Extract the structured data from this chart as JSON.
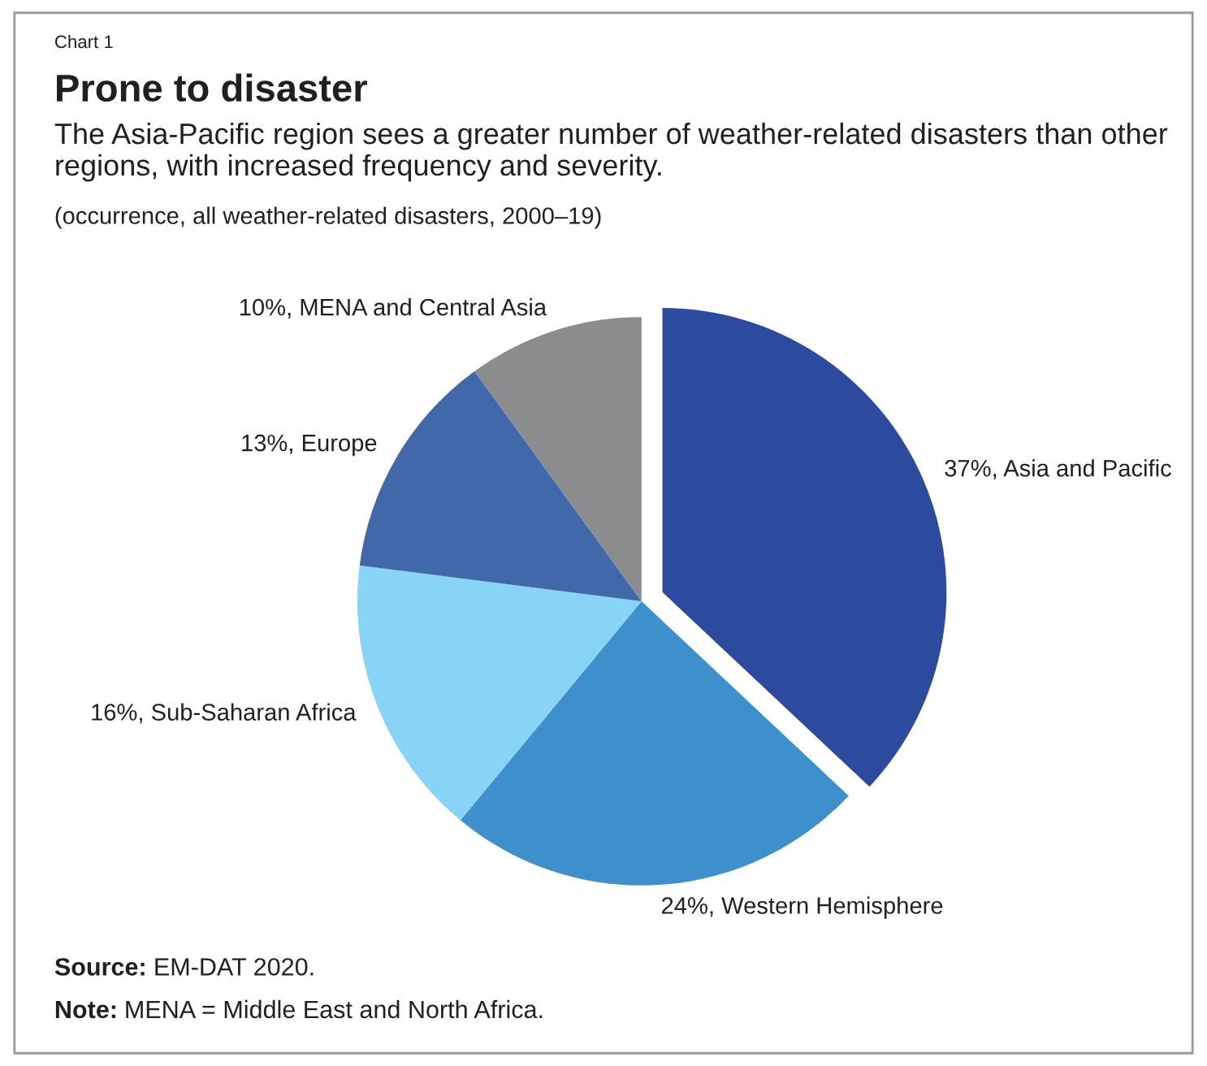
{
  "chart_data": {
    "type": "pie",
    "title": "Prone to disaster",
    "subtitle": "The Asia-Pacific region sees a greater number of weather-related disasters than other regions, with increased frequency and severity.",
    "categories": [
      "37%, Asia and Pacific",
      "24%, Western Hemisphere",
      "16%, Sub-Saharan Africa",
      "13%, Europe",
      "10%, MENA and Central Asia"
    ],
    "values": [
      37,
      24,
      16,
      13,
      10
    ],
    "colors": [
      "#2c4a9e",
      "#3d90cc",
      "#88d4f6",
      "#4169a9",
      "#8b8c8e"
    ],
    "annotations": [
      "Chart 1",
      "(occurrence, all weather-related disasters, 2000–19)",
      "Source: EM-DAT 2020.",
      "Note: MENA = Middle East and North Africa."
    ]
  }
}
